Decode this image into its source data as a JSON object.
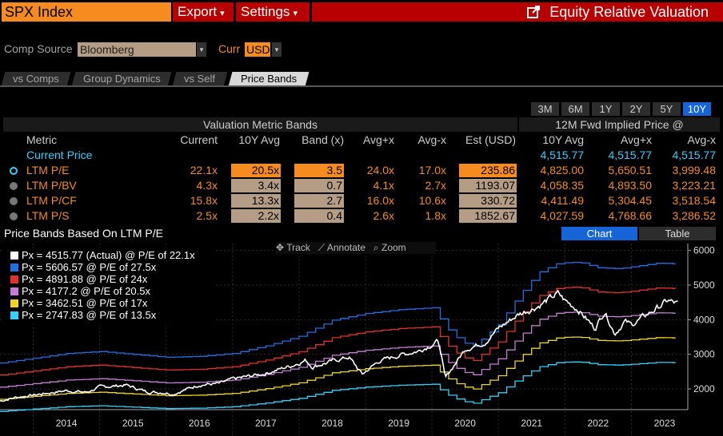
{
  "header": {
    "ticker": "SPX Index",
    "export_label": "Export",
    "settings_label": "Settings",
    "title": "Equity Relative Valuation",
    "accent_orange": "#f68b1f",
    "accent_red": "#b80000"
  },
  "controls": {
    "comp_source_label": "Comp Source",
    "comp_source_value": "Bloomberg",
    "curr_label": "Curr",
    "curr_value": "USD"
  },
  "tabs": [
    "vs Comps",
    "Group Dynamics",
    "vs Self",
    "Price Bands"
  ],
  "active_tab": "Price Bands",
  "periods": [
    "3M",
    "6M",
    "1Y",
    "2Y",
    "5Y",
    "10Y"
  ],
  "active_period": "10Y",
  "table": {
    "group1_title": "Valuation Metric Bands",
    "group2_title": "12M Fwd Implied Price @",
    "columns": [
      "Metric",
      "Current",
      "10Y Avg",
      "Band (x)",
      "Avg+x",
      "Avg-x",
      "Est (USD)",
      "10Y Avg",
      "Avg+x",
      "Avg-x"
    ],
    "current_price": {
      "label": "Current Price",
      "avg": "4,515.77",
      "avg_plus": "4,515.77",
      "avg_minus": "4,515.77"
    },
    "rows": [
      {
        "metric": "LTM P/E",
        "selected": true,
        "current": "22.1x",
        "avg": "20.5x",
        "band": "3.5",
        "avg_plus": "24.0x",
        "avg_minus": "17.0x",
        "est": "235.86",
        "p_avg": "4,825.00",
        "p_plus": "5,650.51",
        "p_minus": "3,999.48"
      },
      {
        "metric": "LTM P/BV",
        "selected": false,
        "current": "4.3x",
        "avg": "3.4x",
        "band": "0.7",
        "avg_plus": "4.1x",
        "avg_minus": "2.7x",
        "est": "1193.07",
        "p_avg": "4,058.35",
        "p_plus": "4,893.50",
        "p_minus": "3,223.21"
      },
      {
        "metric": "LTM P/CF",
        "selected": false,
        "current": "15.8x",
        "avg": "13.3x",
        "band": "2.7",
        "avg_plus": "16.0x",
        "avg_minus": "10.6x",
        "est": "330.72",
        "p_avg": "4,411.49",
        "p_plus": "5,304.45",
        "p_minus": "3,518.54"
      },
      {
        "metric": "LTM P/S",
        "selected": false,
        "current": "2.5x",
        "avg": "2.2x",
        "band": "0.4",
        "avg_plus": "2.6x",
        "avg_minus": "1.8x",
        "est": "1852.67",
        "p_avg": "4,027.59",
        "p_plus": "4,768.66",
        "p_minus": "3,286.52"
      }
    ]
  },
  "chart_section": {
    "title": "Price Bands Based On LTM P/E",
    "view_chart": "Chart",
    "view_table": "Table",
    "tool_track": "Track",
    "tool_annotate": "Annotate",
    "tool_zoom": "Zoom"
  },
  "chart_data": {
    "type": "line",
    "x": [
      "2014",
      "2015",
      "2016",
      "2017",
      "2018",
      "2019",
      "2020",
      "2021",
      "2022",
      "2023"
    ],
    "ylim": [
      1400,
      6200
    ],
    "yticks": [
      "6000",
      "5000",
      "4000",
      "3000",
      "2000"
    ],
    "series": [
      {
        "name": "Px = 4515.77 (Actual) @ P/E of 22.1x",
        "color": "#ffffff",
        "mult": 1
      },
      {
        "name": "Px = 5606.57 @ P/E of 27.5x",
        "color": "#1f6fe5",
        "mult": 27.5
      },
      {
        "name": "Px = 4891.88 @ P/E of 24x",
        "color": "#e5302a",
        "mult": 24
      },
      {
        "name": "Px = 4177.2 @ P/E of 20.5x",
        "color": "#c77bd6",
        "mult": 20.5
      },
      {
        "name": "Px = 3462.51 @ P/E of 17x",
        "color": "#f2d51b",
        "mult": 17
      },
      {
        "name": "Px = 2747.83 @ P/E of 13.5x",
        "color": "#2fd2ff",
        "mult": 13.5
      }
    ],
    "eps_points": [
      [
        2013.5,
        100
      ],
      [
        2014.0,
        105
      ],
      [
        2014.5,
        110
      ],
      [
        2015.0,
        112
      ],
      [
        2015.5,
        109
      ],
      [
        2016.0,
        106
      ],
      [
        2016.5,
        107
      ],
      [
        2017.0,
        110
      ],
      [
        2017.5,
        118
      ],
      [
        2018.0,
        128
      ],
      [
        2018.5,
        145
      ],
      [
        2019.0,
        152
      ],
      [
        2019.5,
        156
      ],
      [
        2020.0,
        158
      ],
      [
        2020.3,
        130
      ],
      [
        2020.6,
        116
      ],
      [
        2021.0,
        140
      ],
      [
        2021.3,
        170
      ],
      [
        2021.6,
        195
      ],
      [
        2021.9,
        205
      ],
      [
        2022.2,
        206
      ],
      [
        2022.5,
        200
      ],
      [
        2022.8,
        199
      ],
      [
        2023.1,
        202
      ],
      [
        2023.4,
        205
      ],
      [
        2023.7,
        204
      ]
    ],
    "price_points": [
      [
        2013.5,
        1650
      ],
      [
        2013.75,
        1760
      ],
      [
        2014.0,
        1820
      ],
      [
        2014.5,
        1950
      ],
      [
        2014.8,
        1900
      ],
      [
        2015.0,
        2050
      ],
      [
        2015.4,
        2110
      ],
      [
        2015.7,
        1920
      ],
      [
        2016.0,
        1890
      ],
      [
        2016.1,
        1850
      ],
      [
        2016.5,
        2120
      ],
      [
        2016.8,
        2150
      ],
      [
        2017.0,
        2280
      ],
      [
        2017.5,
        2450
      ],
      [
        2017.9,
        2680
      ],
      [
        2018.1,
        2830
      ],
      [
        2018.2,
        2640
      ],
      [
        2018.6,
        2850
      ],
      [
        2018.75,
        2920
      ],
      [
        2018.95,
        2420
      ],
      [
        2019.2,
        2800
      ],
      [
        2019.5,
        2970
      ],
      [
        2019.8,
        3100
      ],
      [
        2020.1,
        3380
      ],
      [
        2020.2,
        2300
      ],
      [
        2020.25,
        2450
      ],
      [
        2020.5,
        3150
      ],
      [
        2020.8,
        3350
      ],
      [
        2021.0,
        3750
      ],
      [
        2021.3,
        4150
      ],
      [
        2021.6,
        4400
      ],
      [
        2021.9,
        4750
      ],
      [
        2022.0,
        4550
      ],
      [
        2022.2,
        4300
      ],
      [
        2022.45,
        3750
      ],
      [
        2022.6,
        4250
      ],
      [
        2022.75,
        3600
      ],
      [
        2022.9,
        3950
      ],
      [
        2023.0,
        3850
      ],
      [
        2023.2,
        4100
      ],
      [
        2023.4,
        4350
      ],
      [
        2023.55,
        4550
      ],
      [
        2023.7,
        4450
      ]
    ]
  }
}
